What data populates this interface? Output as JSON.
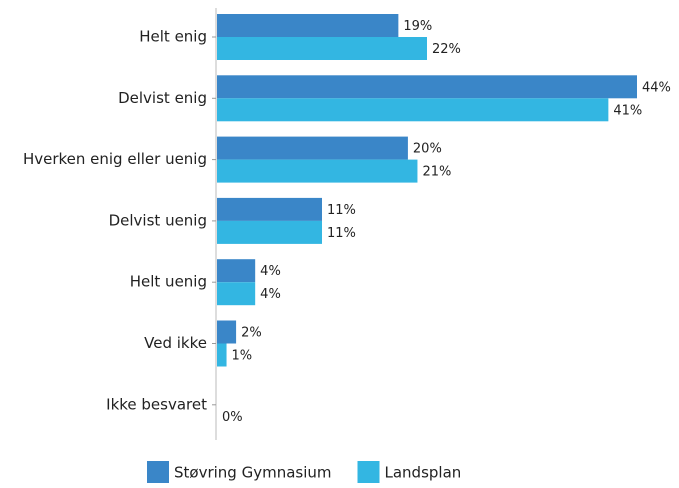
{
  "chart_data": {
    "type": "bar",
    "orientation": "horizontal",
    "categories": [
      "Helt enig",
      "Delvist enig",
      "Hverken enig eller uenig",
      "Delvist uenig",
      "Helt uenig",
      "Ved ikke",
      "Ikke besvaret"
    ],
    "series": [
      {
        "name": "Støvring Gymnasium",
        "color": "#3a86c8",
        "values": [
          19,
          44,
          20,
          11,
          4,
          2,
          0
        ],
        "value_labels": [
          "19%",
          "44%",
          "20%",
          "11%",
          "4%",
          "2%",
          null
        ]
      },
      {
        "name": "Landsplan",
        "color": "#33b6e2",
        "values": [
          22,
          41,
          21,
          11,
          4,
          1,
          0
        ],
        "value_labels": [
          "22%",
          "41%",
          "21%",
          "11%",
          "4%",
          "1%",
          "0%"
        ]
      }
    ],
    "legend": "bottom"
  }
}
